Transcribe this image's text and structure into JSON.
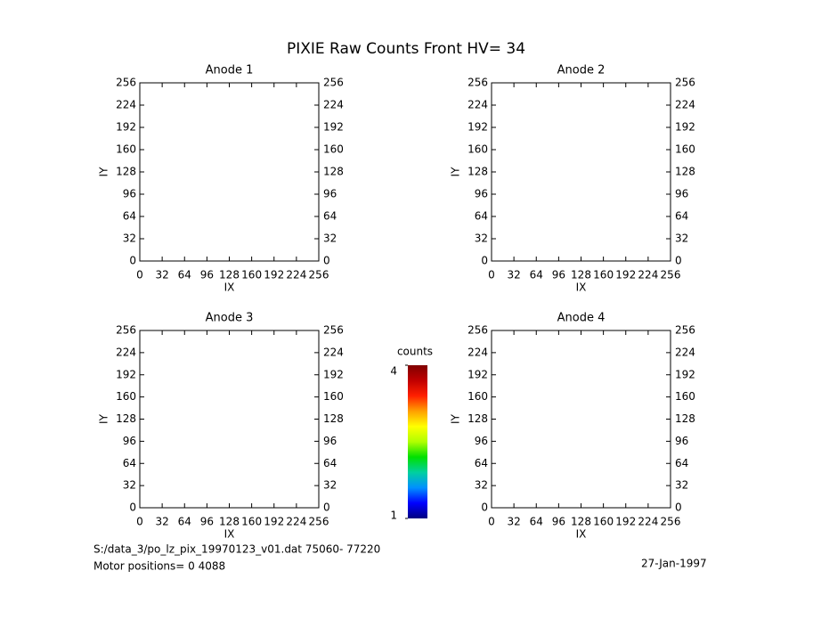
{
  "title": "PIXIE Raw Counts Front HV= 34",
  "footer": {
    "file": "S:/data_3/po_lz_pix_19970123_v01.dat   75060- 77220",
    "motor": "Motor positions= 0 4088",
    "date": "27-Jan-1997"
  },
  "chart_data": [
    {
      "type": "heatmap",
      "title": "Anode 1",
      "xlabel": "IX",
      "ylabel": "IY",
      "xlim": [
        0,
        256
      ],
      "ylim": [
        0,
        256
      ],
      "xticks": [
        0,
        32,
        64,
        96,
        128,
        160,
        192,
        224,
        256
      ],
      "yticks": [
        0,
        32,
        64,
        96,
        128,
        160,
        192,
        224,
        256
      ]
    },
    {
      "type": "heatmap",
      "title": "Anode 2",
      "xlabel": "IX",
      "ylabel": "IY",
      "xlim": [
        0,
        256
      ],
      "ylim": [
        0,
        256
      ],
      "xticks": [
        0,
        32,
        64,
        96,
        128,
        160,
        192,
        224,
        256
      ],
      "yticks": [
        0,
        32,
        64,
        96,
        128,
        160,
        192,
        224,
        256
      ]
    },
    {
      "type": "heatmap",
      "title": "Anode 3",
      "xlabel": "IX",
      "ylabel": "IY",
      "xlim": [
        0,
        256
      ],
      "ylim": [
        0,
        256
      ],
      "xticks": [
        0,
        32,
        64,
        96,
        128,
        160,
        192,
        224,
        256
      ],
      "yticks": [
        0,
        32,
        64,
        96,
        128,
        160,
        192,
        224,
        256
      ]
    },
    {
      "type": "heatmap",
      "title": "Anode 4",
      "xlabel": "IX",
      "ylabel": "IY",
      "xlim": [
        0,
        256
      ],
      "ylim": [
        0,
        256
      ],
      "xticks": [
        0,
        32,
        64,
        96,
        128,
        160,
        192,
        224,
        256
      ],
      "yticks": [
        0,
        32,
        64,
        96,
        128,
        160,
        192,
        224,
        256
      ]
    },
    {
      "type": "colorbar",
      "title": "counts",
      "ylim": [
        1,
        4
      ],
      "yticks": [
        1,
        4
      ],
      "colors": [
        "#000080",
        "#0000ff",
        "#0090ff",
        "#00d0a0",
        "#00e000",
        "#b0ff00",
        "#ffff00",
        "#ffa000",
        "#ff2000",
        "#c00000",
        "#800000"
      ]
    }
  ]
}
